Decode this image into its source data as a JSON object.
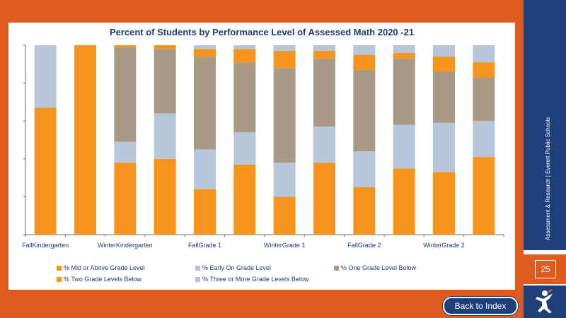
{
  "slide": {
    "sidebar_text": "Assessment & Research | Everett Public Schools",
    "page_number": "25",
    "back_button_label": "Back to Index",
    "logo_icon": "student-figure-icon",
    "colors": {
      "frame": "#e05a1e",
      "navy": "#1e3f7a"
    }
  },
  "chart_data": {
    "type": "bar",
    "stacked": true,
    "title": "Percent of Students by Performance Level of Assessed Math 2020 -21",
    "xlabel": "",
    "ylabel": "",
    "ylim": [
      0,
      100
    ],
    "grid": false,
    "legend_position": "bottom",
    "tick_labels": [
      "FallKindergarten",
      "WinterKindergarten",
      "FallGrade 1",
      "WinterGrade 1",
      "FallGrade 2",
      "WinterGrade 2"
    ],
    "tick_positions": [
      0,
      2,
      4,
      6,
      8,
      10
    ],
    "categories": [
      "FallKindergarten",
      "",
      "WinterKindergarten",
      "",
      "FallGrade 1",
      "",
      "WinterGrade 1",
      "",
      "FallGrade 2",
      "",
      "WinterGrade 2",
      ""
    ],
    "series": [
      {
        "name": "% Mid or Above Grade Level",
        "color": "#f7941d",
        "values": [
          67,
          100,
          38,
          40,
          24,
          37,
          20,
          38,
          25,
          35,
          33,
          41
        ]
      },
      {
        "name": "% Early On Grade Level",
        "color": "#b7c7db",
        "values": [
          33,
          0,
          11,
          24,
          21,
          17,
          18,
          19,
          19,
          23,
          26,
          19
        ]
      },
      {
        "name": "% One Grade Level Below",
        "color": "#a89a84",
        "values": [
          0,
          0,
          50,
          34,
          49,
          37,
          50,
          36,
          43,
          35,
          27,
          23
        ]
      },
      {
        "name": "% Two Grade Levels Below",
        "color": "#f7941d",
        "values": [
          0,
          0,
          1,
          2,
          4,
          7,
          9,
          4,
          8,
          3,
          8,
          8
        ]
      },
      {
        "name": "% Three or More Grade Levels Below",
        "color": "#b7c7db",
        "values": [
          0,
          0,
          0,
          0,
          2,
          2,
          3,
          3,
          5,
          4,
          6,
          9
        ]
      }
    ]
  }
}
